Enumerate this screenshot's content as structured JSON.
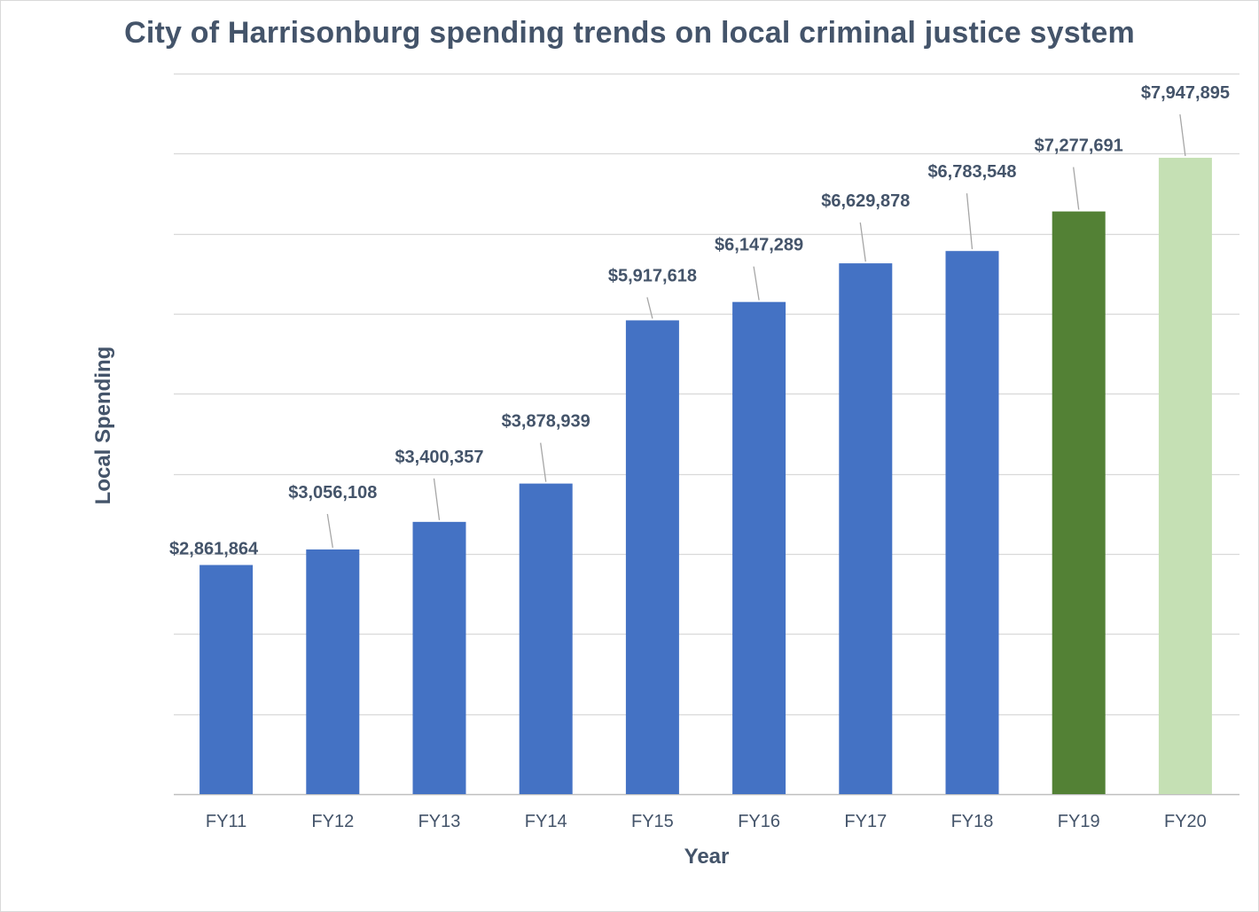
{
  "chart_data": {
    "type": "bar",
    "title": "City of Harrisonburg spending trends on local criminal justice system",
    "xlabel": "Year",
    "ylabel": "Local Spending",
    "categories": [
      "FY11",
      "FY12",
      "FY13",
      "FY14",
      "FY15",
      "FY16",
      "FY17",
      "FY18",
      "FY19",
      "FY20"
    ],
    "values": [
      2861864,
      3056108,
      3400357,
      3878939,
      5917618,
      6147289,
      6629878,
      6783548,
      7277691,
      7947895
    ],
    "value_labels": [
      "$2,861,864",
      "$3,056,108",
      "$3,400,357",
      "$3,878,939",
      "$5,917,618",
      "$6,147,289",
      "$6,629,878",
      "$6,783,548",
      "$7,277,691",
      "$7,947,895"
    ],
    "bar_colors": [
      "#4472c4",
      "#4472c4",
      "#4472c4",
      "#4472c4",
      "#4472c4",
      "#4472c4",
      "#4472c4",
      "#4472c4",
      "#538135",
      "#c5e0b4"
    ],
    "ylim": [
      0,
      9000000
    ],
    "y_gridline_step": 1000000,
    "y_tick_labels_shown": false,
    "grid": true,
    "legend": "none"
  }
}
